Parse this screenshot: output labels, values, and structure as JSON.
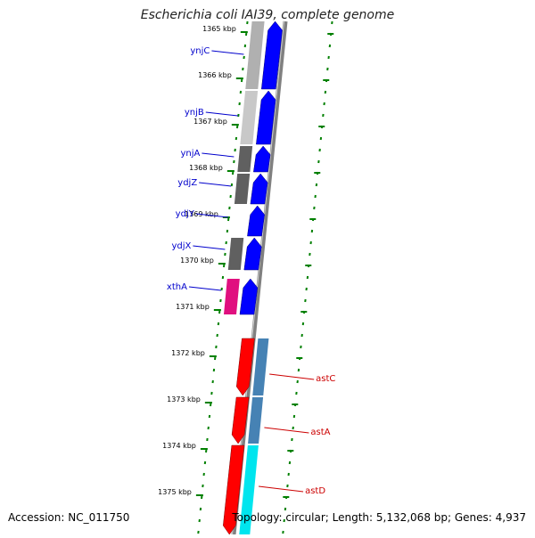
{
  "title": "Escherichia coli IAI39, complete genome",
  "accession": "Accession: NC_011750",
  "topology": "Topology: circular; Length: 5,132,068 bp; Genes: 4,937",
  "scale_labels": [
    "1365 kbp",
    "1366 kbp",
    "1367 kbp",
    "1368 kbp",
    "1369 kbp",
    "1370 kbp",
    "1371 kbp",
    "1372 kbp",
    "1373 kbp",
    "1374 kbp",
    "1375 kbp"
  ],
  "genes": [
    {
      "name": "ynjC",
      "strand": "forward",
      "color": "#0000ff",
      "cog_color": "#b0b0b0",
      "label_color": "#0000cc"
    },
    {
      "name": "ynjB",
      "strand": "forward",
      "color": "#0000ff",
      "cog_color": "#c8c8c8",
      "label_color": "#0000cc"
    },
    {
      "name": "ynjA",
      "strand": "forward",
      "color": "#0000ff",
      "cog_color": "#606060",
      "label_color": "#0000cc"
    },
    {
      "name": "ydjZ",
      "strand": "forward",
      "color": "#0000ff",
      "cog_color": "#606060",
      "label_color": "#0000cc"
    },
    {
      "name": "ydjY",
      "strand": "forward",
      "color": "#0000ff",
      "cog_color": "",
      "label_color": "#0000cc"
    },
    {
      "name": "ydjX",
      "strand": "forward",
      "color": "#0000ff",
      "cog_color": "#606060",
      "label_color": "#0000cc"
    },
    {
      "name": "xthA",
      "strand": "forward",
      "color": "#0000ff",
      "cog_color": "#e0107f",
      "label_color": "#0000cc"
    },
    {
      "name": "astC",
      "strand": "reverse",
      "color": "#ff0000",
      "cog_color": "#4682b4",
      "label_color": "#cc0000"
    },
    {
      "name": "astA",
      "strand": "reverse",
      "color": "#ff0000",
      "cog_color": "#4682b4",
      "label_color": "#cc0000"
    },
    {
      "name": "astD",
      "strand": "reverse",
      "color": "#ff0000",
      "cog_color": "#00e5ee",
      "label_color": "#cc0000"
    }
  ],
  "colors": {
    "tick": "#008000",
    "backbone": "#808080",
    "background": "#ffffff"
  }
}
